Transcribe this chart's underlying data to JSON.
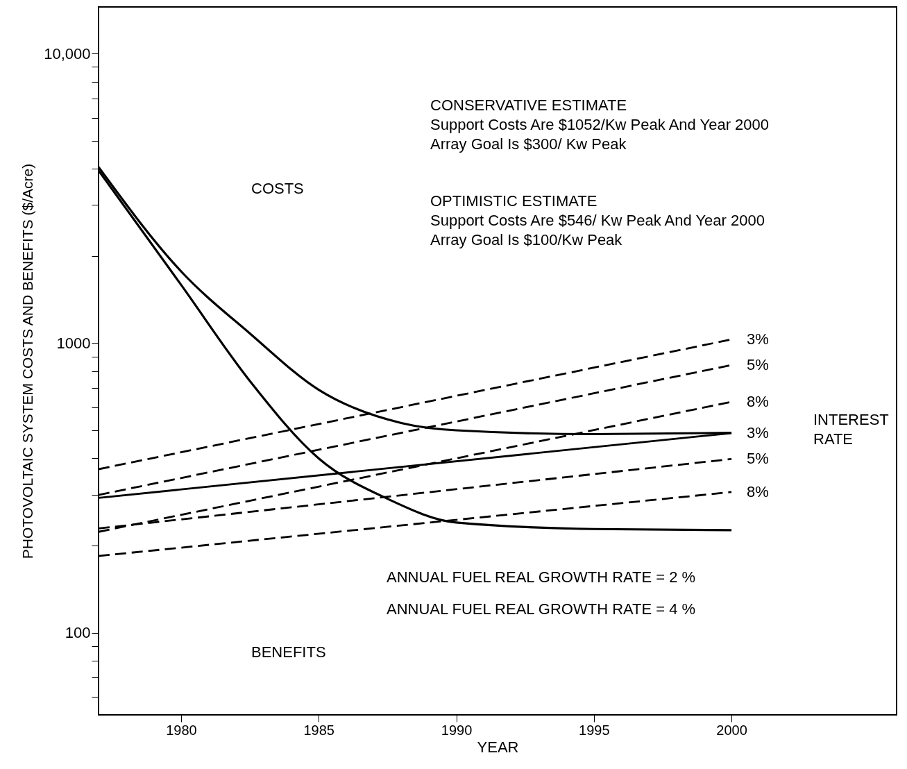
{
  "chart_data": {
    "type": "line",
    "xlabel": "YEAR",
    "ylabel": "PHOTOVOLTAIC SYSTEM COSTS AND BENEFITS ($/Acre)",
    "log": "y",
    "grid": false,
    "marker": "none",
    "xlim": [
      1977,
      2006
    ],
    "xticks": [
      1980,
      1985,
      1990,
      1995,
      2000
    ],
    "ylim": [
      52,
      14500
    ],
    "yticks": [
      {
        "value": 60,
        "label": null
      },
      {
        "value": 70,
        "label": null
      },
      {
        "value": 80,
        "label": null
      },
      {
        "value": 90,
        "label": null
      },
      {
        "value": 100,
        "label": "100"
      },
      {
        "value": 200,
        "label": null
      },
      {
        "value": 300,
        "label": null
      },
      {
        "value": 400,
        "label": null
      },
      {
        "value": 500,
        "label": null
      },
      {
        "value": 600,
        "label": null
      },
      {
        "value": 700,
        "label": null
      },
      {
        "value": 800,
        "label": null
      },
      {
        "value": 900,
        "label": null
      },
      {
        "value": 1000,
        "label": "1000"
      },
      {
        "value": 2000,
        "label": null
      },
      {
        "value": 3000,
        "label": null
      },
      {
        "value": 4000,
        "label": null
      },
      {
        "value": 5000,
        "label": null
      },
      {
        "value": 6000,
        "label": null
      },
      {
        "value": 7000,
        "label": null
      },
      {
        "value": 8000,
        "label": null
      },
      {
        "value": 9000,
        "label": null
      },
      {
        "value": 10000,
        "label": "10,000"
      }
    ],
    "series": [
      {
        "color": "#000000",
        "line_style": "solid",
        "x": [
          1977,
          1980,
          1982.5,
          1985,
          1988,
          1990,
          1995,
          2000
        ],
        "values": [
          4060,
          1770,
          1080,
          690,
          530,
          500,
          485,
          490
        ]
      },
      {
        "color": "#000000",
        "line_style": "solid",
        "x": [
          1977,
          1980,
          1982.5,
          1985,
          1987.5,
          1990,
          1995,
          2000
        ],
        "values": [
          3950,
          1590,
          740,
          400,
          290,
          240,
          228,
          226
        ]
      },
      {
        "name": "3%",
        "color": "#000000",
        "line_style": "dashed",
        "x": [
          1977,
          2000
        ],
        "values": [
          367,
          1030
        ]
      },
      {
        "name": "5%",
        "color": "#000000",
        "line_style": "dashed",
        "x": [
          1977,
          2000
        ],
        "values": [
          299,
          840
        ]
      },
      {
        "name": "8%",
        "color": "#000000",
        "line_style": "dashed",
        "x": [
          1977,
          2000
        ],
        "values": [
          223,
          627
        ]
      },
      {
        "name": "3%",
        "color": "#000000",
        "line_style": "solid",
        "x": [
          1977,
          2000
        ],
        "values": [
          292,
          489
        ]
      },
      {
        "name": "5%",
        "color": "#000000",
        "line_style": "dashed",
        "x": [
          1977,
          2000
        ],
        "values": [
          229,
          398
        ]
      },
      {
        "name": "8%",
        "color": "#000000",
        "line_style": "dashed",
        "x": [
          1977,
          2000
        ],
        "values": [
          184,
          306
        ]
      }
    ],
    "annotations": [
      "CONSERVATIVE ESTIMATE\nSupport Costs Are $1052/Kw Peak And Year 2000\nArray Goal Is $300/ Kw Peak",
      "OPTIMISTIC ESTIMATE\nSupport Costs Are $546/ Kw Peak And Year 2000\nArray Goal Is $100/Kw Peak",
      "COSTS",
      "INTEREST\nRATE",
      "ANNUAL FUEL REAL GROWTH RATE = 2 %",
      "ANNUAL FUEL REAL GROWTH RATE = 4 %",
      "BENEFITS"
    ]
  }
}
